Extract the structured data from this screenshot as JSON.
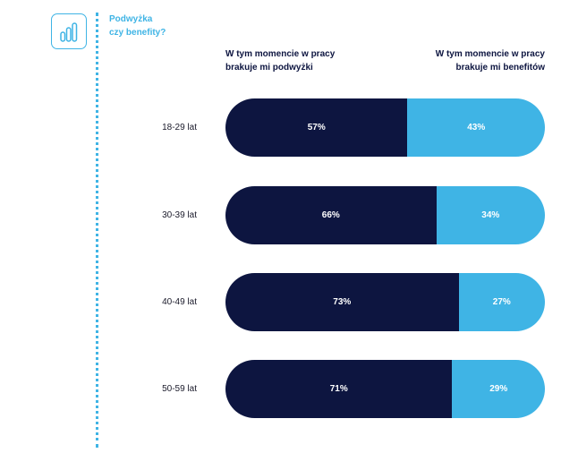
{
  "header": {
    "title_line1": "Podwyżka",
    "title_line2": "czy benefity?",
    "icon": "bar-chart-icon"
  },
  "colors": {
    "dark": "#0d1540",
    "light": "#3fb4e5",
    "accent": "#3fb4e5"
  },
  "chart_data": {
    "type": "bar",
    "orientation": "horizontal",
    "stacked": true,
    "title": "Podwyżka czy benefity?",
    "categories": [
      "18-29 lat",
      "30-39 lat",
      "40-49 lat",
      "50-59 lat"
    ],
    "series": [
      {
        "name": "W tym momencie w pracy brakuje mi podwyżki",
        "name_line1": "W tym momencie w pracy",
        "name_line2": "brakuje mi podwyżki",
        "values": [
          57,
          66,
          73,
          71
        ],
        "labels": [
          "57%",
          "66%",
          "73%",
          "71%"
        ]
      },
      {
        "name": "W tym momencie w pracy brakuje mi benefitów",
        "name_line1": "W tym momencie w pracy",
        "name_line2": "brakuje mi benefitów",
        "values": [
          43,
          34,
          27,
          29
        ],
        "labels": [
          "43%",
          "34%",
          "27%",
          "29%"
        ]
      }
    ],
    "xlim": [
      0,
      100
    ],
    "unit": "%"
  }
}
